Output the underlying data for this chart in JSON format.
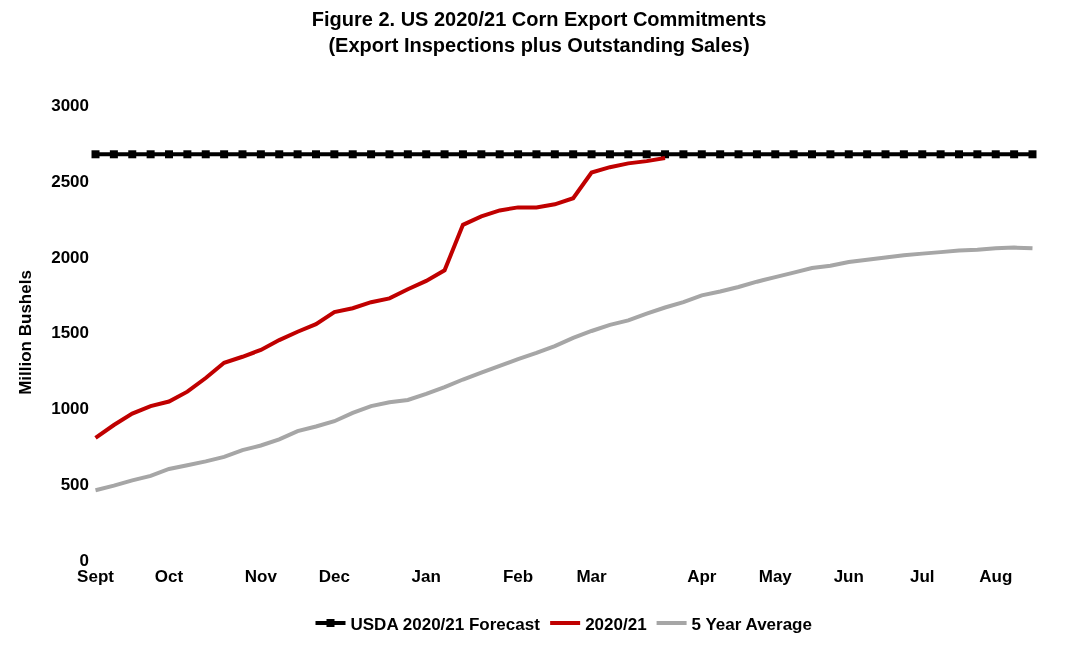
{
  "chart_data": {
    "type": "line",
    "title": "Figure 2. US 2020/21 Corn Export Commitments\n(Export Inspections plus Outstanding Sales)",
    "ylabel": "Million Bushels",
    "categories": [
      "Sept",
      null,
      null,
      null,
      "Oct",
      null,
      null,
      null,
      null,
      "Nov",
      null,
      null,
      null,
      "Dec",
      null,
      null,
      null,
      null,
      "Jan",
      null,
      null,
      null,
      null,
      "Feb",
      null,
      null,
      null,
      "Mar",
      null,
      null,
      null,
      null,
      null,
      "Apr",
      null,
      null,
      null,
      "May",
      null,
      null,
      null,
      "Jun",
      null,
      null,
      null,
      "Jul",
      null,
      null,
      null,
      "Aug",
      null,
      null
    ],
    "series": [
      {
        "name": "USDA 2020/21 Forecast",
        "color": "#000000",
        "marker": "square",
        "values": [
          2675,
          2675,
          2675,
          2675,
          2675,
          2675,
          2675,
          2675,
          2675,
          2675,
          2675,
          2675,
          2675,
          2675,
          2675,
          2675,
          2675,
          2675,
          2675,
          2675,
          2675,
          2675,
          2675,
          2675,
          2675,
          2675,
          2675,
          2675,
          2675,
          2675,
          2675,
          2675,
          2675,
          2675,
          2675,
          2675,
          2675,
          2675,
          2675,
          2675,
          2675,
          2675,
          2675,
          2675,
          2675,
          2675,
          2675,
          2675,
          2675,
          2675,
          2675,
          2675
        ]
      },
      {
        "name": "2020/21",
        "color": "#c00000",
        "marker": "none",
        "values": [
          805,
          890,
          965,
          1015,
          1045,
          1110,
          1200,
          1300,
          1340,
          1385,
          1450,
          1505,
          1555,
          1635,
          1660,
          1700,
          1725,
          1785,
          1840,
          1910,
          2210,
          2265,
          2305,
          2325,
          2325,
          2345,
          2385,
          2555,
          2590,
          2615,
          2630,
          2650,
          null,
          null,
          null,
          null,
          null,
          null,
          null,
          null,
          null,
          null,
          null,
          null,
          null,
          null,
          null,
          null,
          null,
          null,
          null,
          null
        ]
      },
      {
        "name": "5 Year Average",
        "color": "#a6a6a6",
        "marker": "none",
        "values": [
          460,
          490,
          525,
          555,
          600,
          625,
          650,
          680,
          725,
          755,
          795,
          850,
          880,
          915,
          970,
          1015,
          1040,
          1055,
          1095,
          1140,
          1190,
          1235,
          1280,
          1325,
          1365,
          1410,
          1465,
          1510,
          1550,
          1580,
          1625,
          1665,
          1700,
          1745,
          1770,
          1800,
          1835,
          1865,
          1895,
          1925,
          1940,
          1965,
          1980,
          1995,
          2010,
          2020,
          2030,
          2040,
          2045,
          2055,
          2060,
          2055
        ]
      }
    ],
    "ylim": [
      0,
      3000
    ],
    "yticks": [
      0,
      500,
      1000,
      1500,
      2000,
      2500,
      3000
    ],
    "legend": "bottom",
    "line_style": "solid"
  }
}
